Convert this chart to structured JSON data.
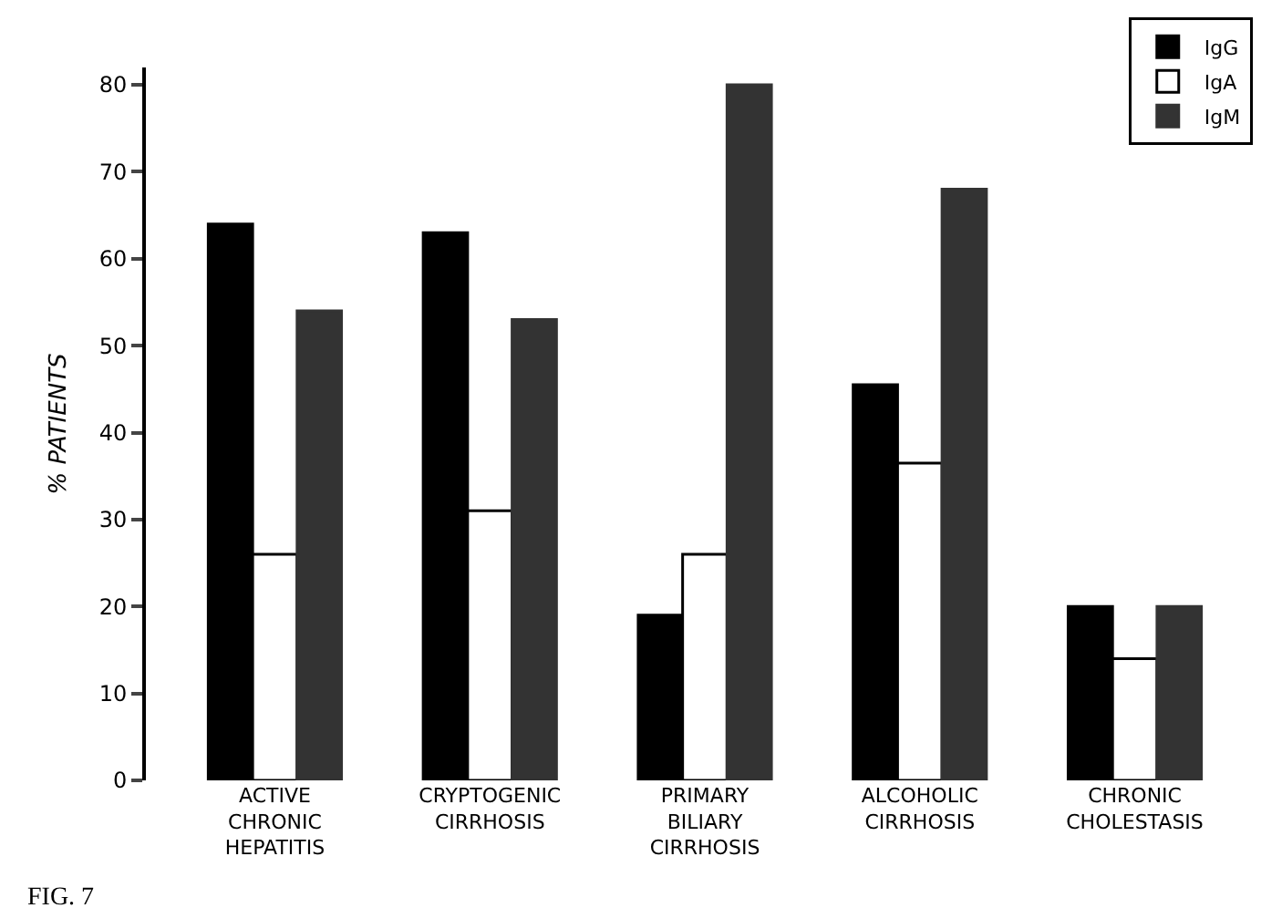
{
  "chart_data": {
    "type": "bar",
    "ylabel": "% PATIENTS",
    "categories": [
      "ACTIVE\nCHRONIC\nHEPATITIS",
      "CRYPTOGENIC\nCIRRHOSIS",
      "PRIMARY\nBILIARY\nCIRRHOSIS",
      "ALCOHOLIC\nCIRRHOSIS",
      "CHRONIC\nCHOLESTASIS"
    ],
    "series": [
      {
        "name": "IgG",
        "color": "#000000",
        "values": [
          64,
          63,
          19,
          45.5,
          20
        ]
      },
      {
        "name": "IgA",
        "color": "#ffffff",
        "values": [
          26,
          31,
          26,
          36.5,
          14
        ]
      },
      {
        "name": "IgM",
        "color": "#333333",
        "values": [
          54,
          53,
          80,
          68,
          20
        ]
      }
    ],
    "ylim": [
      0,
      82
    ],
    "yticks": [
      0,
      10,
      20,
      30,
      40,
      50,
      60,
      70,
      80
    ],
    "legend": "top right",
    "annotations": [
      "FIG. 7"
    ]
  }
}
